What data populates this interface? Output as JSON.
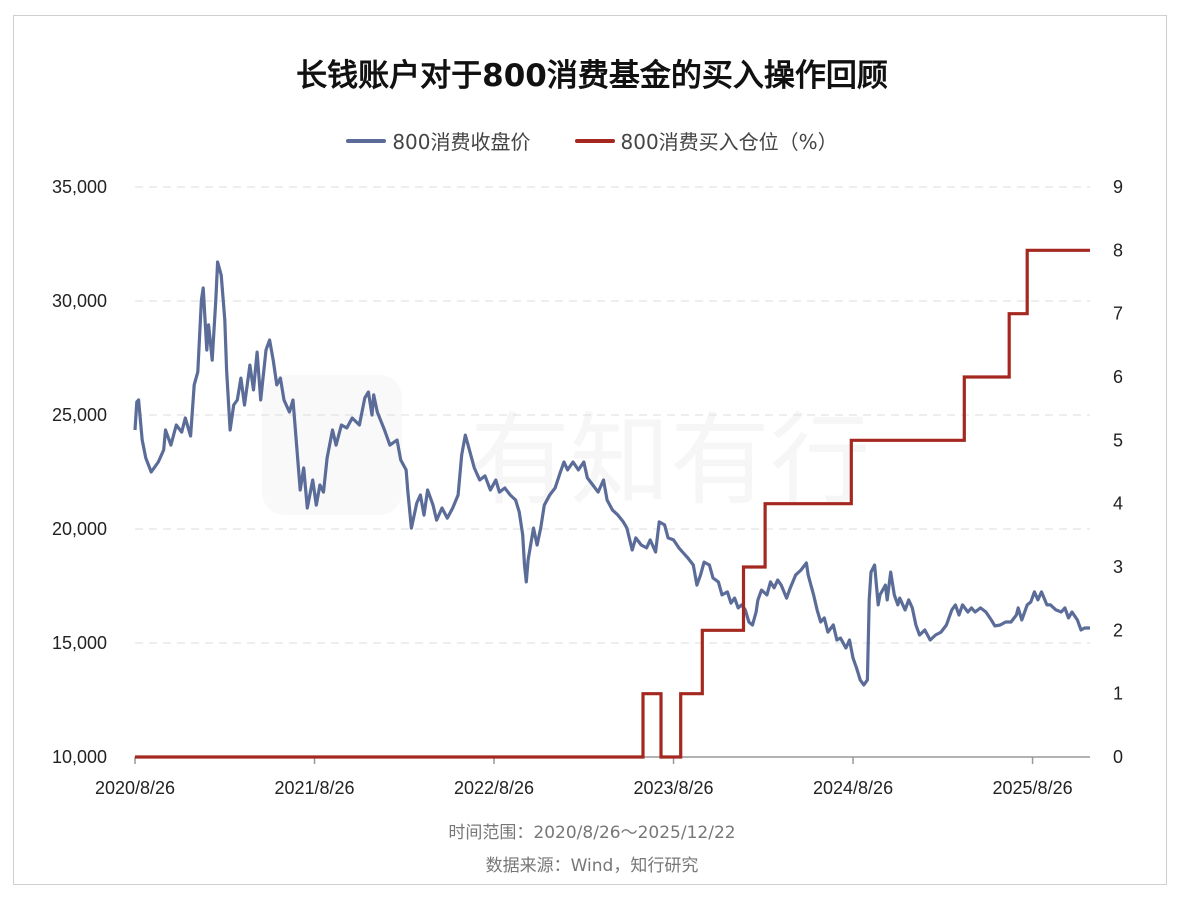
{
  "watermark": "有知有行",
  "colors": {
    "price": "#5b6c99",
    "position": "#a4281f",
    "grid": "#dddddd",
    "axis": "#999999"
  },
  "chart_data": {
    "type": "line",
    "title": "长钱账户对于800消费基金的买入操作回顾",
    "legend_position": "top-center",
    "x_unit": "decimal year",
    "xlim": [
      2020.65,
      2025.97
    ],
    "x_ticks": [
      {
        "value": 2020.65,
        "label": "2020/8/26"
      },
      {
        "value": 2021.65,
        "label": "2021/8/26"
      },
      {
        "value": 2022.65,
        "label": "2022/8/26"
      },
      {
        "value": 2023.65,
        "label": "2023/8/26"
      },
      {
        "value": 2024.65,
        "label": "2024/8/26"
      },
      {
        "value": 2025.65,
        "label": "2025/8/26"
      }
    ],
    "y_left": {
      "ylim": [
        10000,
        35000
      ],
      "ticks": [
        10000,
        15000,
        20000,
        25000,
        30000,
        35000
      ],
      "tick_labels": [
        "10,000",
        "15,000",
        "20,000",
        "25,000",
        "30,000",
        "35,000"
      ]
    },
    "y_right": {
      "ylim": [
        0,
        9
      ],
      "ticks": [
        0,
        1,
        2,
        3,
        4,
        5,
        6,
        7,
        8,
        9
      ],
      "tick_labels": [
        "0",
        "1",
        "2",
        "3",
        "4",
        "5",
        "6",
        "7",
        "8",
        "9"
      ]
    },
    "grid": true,
    "series": [
      {
        "name": "800消费收盘价",
        "axis": "left",
        "kind": "line",
        "x": [
          2020.65,
          2020.66,
          2020.67,
          2020.69,
          2020.71,
          2020.74,
          2020.78,
          2020.81,
          2020.82,
          2020.85,
          2020.88,
          2020.91,
          2020.93,
          2020.96,
          2020.98,
          2021.0,
          2021.02,
          2021.03,
          2021.05,
          2021.06,
          2021.08,
          2021.1,
          2021.11,
          2021.13,
          2021.15,
          2021.16,
          2021.18,
          2021.2,
          2021.22,
          2021.24,
          2021.26,
          2021.29,
          2021.31,
          2021.33,
          2021.35,
          2021.38,
          2021.4,
          2021.42,
          2021.44,
          2021.46,
          2021.48,
          2021.51,
          2021.53,
          2021.55,
          2021.57,
          2021.59,
          2021.61,
          2021.64,
          2021.66,
          2021.68,
          2021.7,
          2021.72,
          2021.75,
          2021.77,
          2021.8,
          2021.83,
          2021.86,
          2021.9,
          2021.93,
          2021.95,
          2021.97,
          2021.98,
          2022.0,
          2022.04,
          2022.07,
          2022.11,
          2022.13,
          2022.16,
          2022.17,
          2022.19,
          2022.22,
          2022.24,
          2022.26,
          2022.28,
          2022.31,
          2022.33,
          2022.36,
          2022.39,
          2022.42,
          2022.45,
          2022.47,
          2022.49,
          2022.51,
          2022.54,
          2022.57,
          2022.6,
          2022.63,
          2022.66,
          2022.68,
          2022.71,
          2022.74,
          2022.77,
          2022.79,
          2022.81,
          2022.82,
          2022.83,
          2022.84,
          2022.87,
          2022.89,
          2022.91,
          2022.93,
          2022.96,
          2022.99,
          2023.02,
          2023.04,
          2023.06,
          2023.09,
          2023.12,
          2023.15,
          2023.17,
          2023.2,
          2023.23,
          2023.26,
          2023.28,
          2023.31,
          2023.34,
          2023.37,
          2023.39,
          2023.42,
          2023.44,
          2023.47,
          2023.5,
          2023.52,
          2023.55,
          2023.57,
          2023.6,
          2023.62,
          2023.65,
          2023.68,
          2023.7,
          2023.73,
          2023.76,
          2023.78,
          2023.8,
          2023.82,
          2023.85,
          2023.87,
          2023.9,
          2023.92,
          2023.95,
          2023.97,
          2023.99,
          2024.01,
          2024.03,
          2024.05,
          2024.07,
          2024.09,
          2024.11,
          2024.12,
          2024.14,
          2024.17,
          2024.19,
          2024.21,
          2024.23,
          2024.25,
          2024.28,
          2024.3,
          2024.33,
          2024.36,
          2024.39,
          2024.4,
          2024.43,
          2024.45,
          2024.47,
          2024.49,
          2024.51,
          2024.54,
          2024.56,
          2024.58,
          2024.61,
          2024.63,
          2024.65,
          2024.67,
          2024.69,
          2024.71,
          2024.73,
          2024.74,
          2024.75,
          2024.77,
          2024.79,
          2024.8,
          2024.83,
          2024.84,
          2024.86,
          2024.88,
          2024.9,
          2024.91,
          2024.94,
          2024.96,
          2024.98,
          2025.0,
          2025.02,
          2025.05,
          2025.08,
          2025.11,
          2025.14,
          2025.17,
          2025.2,
          2025.22,
          2025.24,
          2025.26,
          2025.29,
          2025.31,
          2025.33,
          2025.36,
          2025.39,
          2025.42,
          2025.44,
          2025.47,
          2025.5,
          2025.53,
          2025.56,
          2025.57,
          2025.59,
          2025.62,
          2025.64,
          2025.66,
          2025.68,
          2025.7,
          2025.73,
          2025.75,
          2025.78,
          2025.81,
          2025.83,
          2025.85,
          2025.87,
          2025.9,
          2025.92,
          2025.94,
          2025.97
        ],
        "values": [
          24340,
          25570,
          25660,
          23900,
          23110,
          22500,
          22940,
          23470,
          24340,
          23680,
          24560,
          24250,
          24870,
          24080,
          26320,
          26890,
          30040,
          30570,
          27850,
          28950,
          27410,
          30040,
          31710,
          31140,
          29170,
          26970,
          24340,
          25440,
          25660,
          26620,
          25440,
          27190,
          26100,
          27760,
          25660,
          27850,
          28290,
          27410,
          26320,
          26620,
          25660,
          25130,
          25660,
          23680,
          21710,
          22680,
          20920,
          22150,
          21050,
          21930,
          21620,
          23110,
          24340,
          23680,
          24560,
          24430,
          24870,
          24560,
          25750,
          26010,
          25000,
          25880,
          25130,
          24340,
          23680,
          23900,
          23030,
          22590,
          21620,
          20040,
          21140,
          21490,
          20610,
          21710,
          21050,
          20390,
          20920,
          20480,
          20920,
          21490,
          23250,
          24120,
          23550,
          22680,
          22150,
          22330,
          21710,
          22150,
          21620,
          21800,
          21490,
          21270,
          20750,
          19740,
          18420,
          17680,
          18640,
          20040,
          19300,
          20040,
          21050,
          21490,
          21800,
          22500,
          22940,
          22590,
          22940,
          22590,
          22940,
          22240,
          21930,
          21620,
          22150,
          21270,
          20830,
          20610,
          20310,
          20040,
          19080,
          19610,
          19300,
          19170,
          19520,
          18990,
          20310,
          20180,
          19610,
          19520,
          19170,
          18990,
          18730,
          18420,
          17540,
          17980,
          18550,
          18420,
          17850,
          17680,
          17110,
          17240,
          16750,
          16970,
          16540,
          16670,
          16450,
          15920,
          15790,
          16360,
          16890,
          17320,
          17110,
          17680,
          17420,
          17760,
          17540,
          16970,
          17410,
          17980,
          18200,
          18510,
          17980,
          17110,
          16450,
          15920,
          16100,
          15480,
          15790,
          15130,
          15220,
          14780,
          15130,
          14340,
          13900,
          13380,
          13160,
          13380,
          16890,
          18110,
          18420,
          16670,
          17110,
          17540,
          16890,
          18110,
          17110,
          16670,
          16970,
          16450,
          16890,
          16540,
          15790,
          15350,
          15570,
          15130,
          15350,
          15480,
          15790,
          16450,
          16670,
          16230,
          16670,
          16360,
          16540,
          16360,
          16540,
          16360,
          16010,
          15750,
          15790,
          15920,
          15920,
          16230,
          16540,
          16010,
          16670,
          16800,
          17240,
          16890,
          17240,
          16670,
          16670,
          16450,
          16360,
          16540,
          16100,
          16360,
          16010,
          15570,
          15660,
          15660
        ]
      },
      {
        "name": "800消费买入仓位（%）",
        "axis": "right",
        "kind": "step",
        "x": [
          2020.65,
          2023.48,
          2023.58,
          2023.69,
          2023.81,
          2024.04,
          2024.16,
          2024.64,
          2025.27,
          2025.52,
          2025.62,
          2025.97
        ],
        "values": [
          0,
          1,
          0,
          1,
          2,
          3,
          4,
          5,
          6,
          7,
          8,
          8
        ]
      }
    ]
  },
  "footer": {
    "time_range": "时间范围：2020/8/26～2025/12/22",
    "source": "数据来源：Wind，知行研究"
  }
}
